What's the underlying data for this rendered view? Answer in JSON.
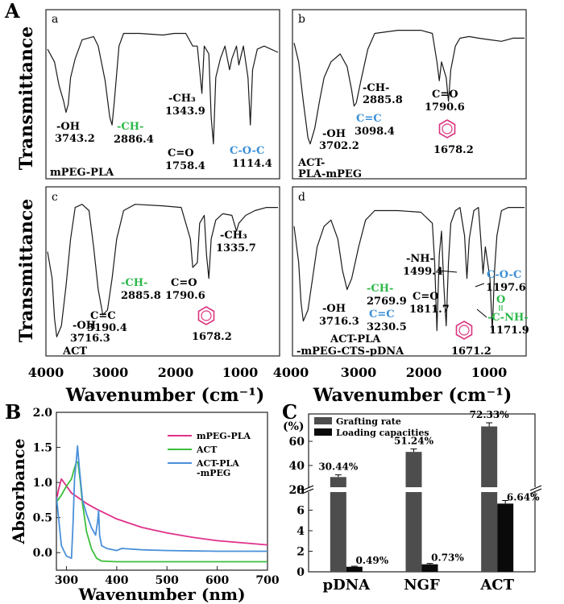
{
  "panel_letters": {
    "A": "A",
    "B": "B",
    "C": "C"
  },
  "colors": {
    "ftir_line": "#1a1a1a",
    "green_label": "#2db84a",
    "blue_label": "#3a8fd6",
    "benzene": "#d9327e",
    "mpeg_pla": "#e0308a",
    "act": "#3cbf3c",
    "act_pla_mpeg": "#4a90d9",
    "grafting_bar": "#4d4d4d",
    "loading_bar": "#0a0a0a"
  },
  "panel_A": {
    "ylabel": "Transmittance",
    "xlabel": "Wavenumber (cm⁻¹)",
    "x_ticks": [
      "4000",
      "3000",
      "2000",
      "1000"
    ],
    "x_tick_values": [
      4000,
      3000,
      2000,
      1000
    ],
    "x_range": [
      4000,
      400
    ],
    "subpanels": [
      {
        "letter": "a",
        "sample": "mPEG-PLA",
        "peaks": [
          {
            "label": "-OH",
            "value": "3743.2",
            "wavenumber": 3743.2,
            "color": "black"
          },
          {
            "label": "-CH-",
            "value": "2886.4",
            "wavenumber": 2886.4,
            "color": "green"
          },
          {
            "label": "-CH₃",
            "value": "1343.9",
            "wavenumber": 1343.9,
            "color": "black"
          },
          {
            "label": "C=O",
            "value": "1758.4",
            "wavenumber": 1758.4,
            "color": "black"
          },
          {
            "label": "C-O-C",
            "value": "1114.4",
            "wavenumber": 1114.4,
            "color": "blue"
          }
        ]
      },
      {
        "letter": "b",
        "sample": "ACT-PLA-mPEG",
        "sample_lines": [
          "ACT-",
          "PLA-mPEG"
        ],
        "peaks": [
          {
            "label": "-OH",
            "value": "3702.2",
            "wavenumber": 3702.2,
            "color": "black"
          },
          {
            "label": "C=C",
            "value": "3098.4",
            "wavenumber": 3098.4,
            "color": "blue"
          },
          {
            "label": "-CH-",
            "value": "2885.8",
            "wavenumber": 2885.8,
            "color": "black"
          },
          {
            "label": "C=O",
            "value": "1790.6",
            "wavenumber": 1790.6,
            "color": "black"
          },
          {
            "label": "benzene",
            "value": "1678.2",
            "wavenumber": 1678.2,
            "color": "pink"
          }
        ]
      },
      {
        "letter": "c",
        "sample": "ACT",
        "peaks": [
          {
            "label": "-OH",
            "value": "3716.3",
            "wavenumber": 3716.3,
            "color": "black"
          },
          {
            "label": "C=C",
            "value": "3190.4",
            "wavenumber": 3190.4,
            "color": "black"
          },
          {
            "label": "-CH-",
            "value": "2885.8",
            "wavenumber": 2885.8,
            "color": "green"
          },
          {
            "label": "C=O",
            "value": "1790.6",
            "wavenumber": 1790.6,
            "color": "black"
          },
          {
            "label": "benzene",
            "value": "1678.2",
            "wavenumber": 1678.2,
            "color": "pink"
          },
          {
            "label": "-CH₃",
            "value": "1335.7",
            "wavenumber": 1335.7,
            "color": "black"
          }
        ]
      },
      {
        "letter": "d",
        "sample": "ACT-PLA-mPEG-CTS-pDNA",
        "sample_lines": [
          "ACT-PLA",
          "-mPEG-CTS-pDNA"
        ],
        "peaks": [
          {
            "label": "-OH",
            "value": "3716.3",
            "wavenumber": 3716.3,
            "color": "black"
          },
          {
            "label": "-CH-",
            "value": "2769.9",
            "wavenumber": 2769.9,
            "color": "green"
          },
          {
            "label": "C=C",
            "value": "3230.5",
            "wavenumber": 3230.5,
            "color": "blue"
          },
          {
            "label": "C=O",
            "value": "1811.7",
            "wavenumber": 1811.7,
            "color": "black"
          },
          {
            "label": "-NH-",
            "value": "1499.4",
            "wavenumber": 1499.4,
            "color": "black"
          },
          {
            "label": "benzene",
            "value": "1671.2",
            "wavenumber": 1671.2,
            "color": "pink"
          },
          {
            "label": "C-O-C",
            "value": "1197.6",
            "wavenumber": 1197.6,
            "color": "blue"
          },
          {
            "label": "-C-NH-",
            "value": "1171.9",
            "wavenumber": 1171.9,
            "color": "green"
          },
          {
            "label": "O",
            "value": "",
            "color": "green"
          }
        ]
      }
    ]
  },
  "chart_data": [
    {
      "type": "line",
      "panel": "B",
      "xlabel": "Wavenumber (nm)",
      "ylabel": "Absorbance",
      "xlim": [
        280,
        700
      ],
      "ylim": [
        -0.25,
        2.0
      ],
      "x_ticks": [
        300,
        400,
        500,
        600,
        700
      ],
      "y_ticks": [
        0.0,
        0.5,
        1.0,
        1.5,
        2.0
      ],
      "x_tick_labels": [
        "300",
        "400",
        "500",
        "600",
        "700"
      ],
      "y_tick_labels": [
        "0.0",
        "0.5",
        "1.0",
        "1.5",
        "2.0"
      ],
      "legend_position": "top-right",
      "series": [
        {
          "name": "mPEG-PLA",
          "color_key": "mpeg_pla",
          "x": [
            280,
            285,
            290,
            295,
            300,
            305,
            310,
            320,
            330,
            340,
            360,
            380,
            400,
            450,
            500,
            550,
            600,
            650,
            700
          ],
          "y": [
            0.75,
            0.92,
            1.05,
            1.0,
            0.95,
            0.9,
            0.85,
            0.8,
            0.75,
            0.7,
            0.62,
            0.55,
            0.48,
            0.36,
            0.28,
            0.22,
            0.17,
            0.14,
            0.11
          ]
        },
        {
          "name": "ACT",
          "color_key": "act",
          "x": [
            280,
            290,
            300,
            310,
            315,
            320,
            323,
            327,
            332,
            340,
            350,
            360,
            370,
            400,
            500,
            600,
            700
          ],
          "y": [
            0.72,
            0.82,
            0.95,
            1.05,
            1.18,
            1.3,
            1.28,
            1.05,
            0.7,
            0.3,
            0.05,
            -0.08,
            -0.12,
            -0.13,
            -0.13,
            -0.13,
            -0.13
          ]
        },
        {
          "name": "ACT-PLA\n-mPEG",
          "legend_lines": [
            "ACT-PLA",
            "-mPEG"
          ],
          "color_key": "act_pla_mpeg",
          "x": [
            280,
            285,
            290,
            300,
            310,
            313,
            316,
            320,
            322,
            326,
            332,
            340,
            350,
            358,
            362,
            364,
            366,
            370,
            380,
            400,
            410,
            450,
            500,
            600,
            700
          ],
          "y": [
            0.8,
            0.45,
            0.1,
            -0.05,
            -0.08,
            0.4,
            1.05,
            1.35,
            1.52,
            1.18,
            0.75,
            0.55,
            0.35,
            0.25,
            0.45,
            0.6,
            0.25,
            0.1,
            0.06,
            0.03,
            0.06,
            0.04,
            0.03,
            0.02,
            0.02
          ]
        }
      ]
    },
    {
      "type": "bar",
      "panel": "C",
      "categories": [
        "pDNA",
        "NGF",
        "ACT"
      ],
      "ylabel": "(%)",
      "legend_position": "top-left",
      "y_ticks_lower": [
        0,
        2,
        4,
        6,
        8
      ],
      "y_ticks_upper": [
        20,
        40,
        60
      ],
      "y_tick_labels_lower": [
        "0",
        "2",
        "4",
        "6",
        "8"
      ],
      "y_tick_labels_upper": [
        "20",
        "40",
        "60"
      ],
      "axis_break": true,
      "series": [
        {
          "name": "Grafting rate",
          "color_key": "grafting_bar",
          "values": [
            30.44,
            51.24,
            72.33
          ],
          "errors": [
            1.8,
            2.5,
            3.0
          ],
          "data_labels": [
            "30.44%",
            "51.24%",
            "72.33%"
          ]
        },
        {
          "name": "Loading capacities",
          "color_key": "loading_bar",
          "values": [
            0.49,
            0.73,
            6.64
          ],
          "errors": [
            0.05,
            0.08,
            0.3
          ],
          "data_labels": [
            "0.49%",
            "0.73%",
            "6.64%"
          ]
        }
      ]
    }
  ]
}
